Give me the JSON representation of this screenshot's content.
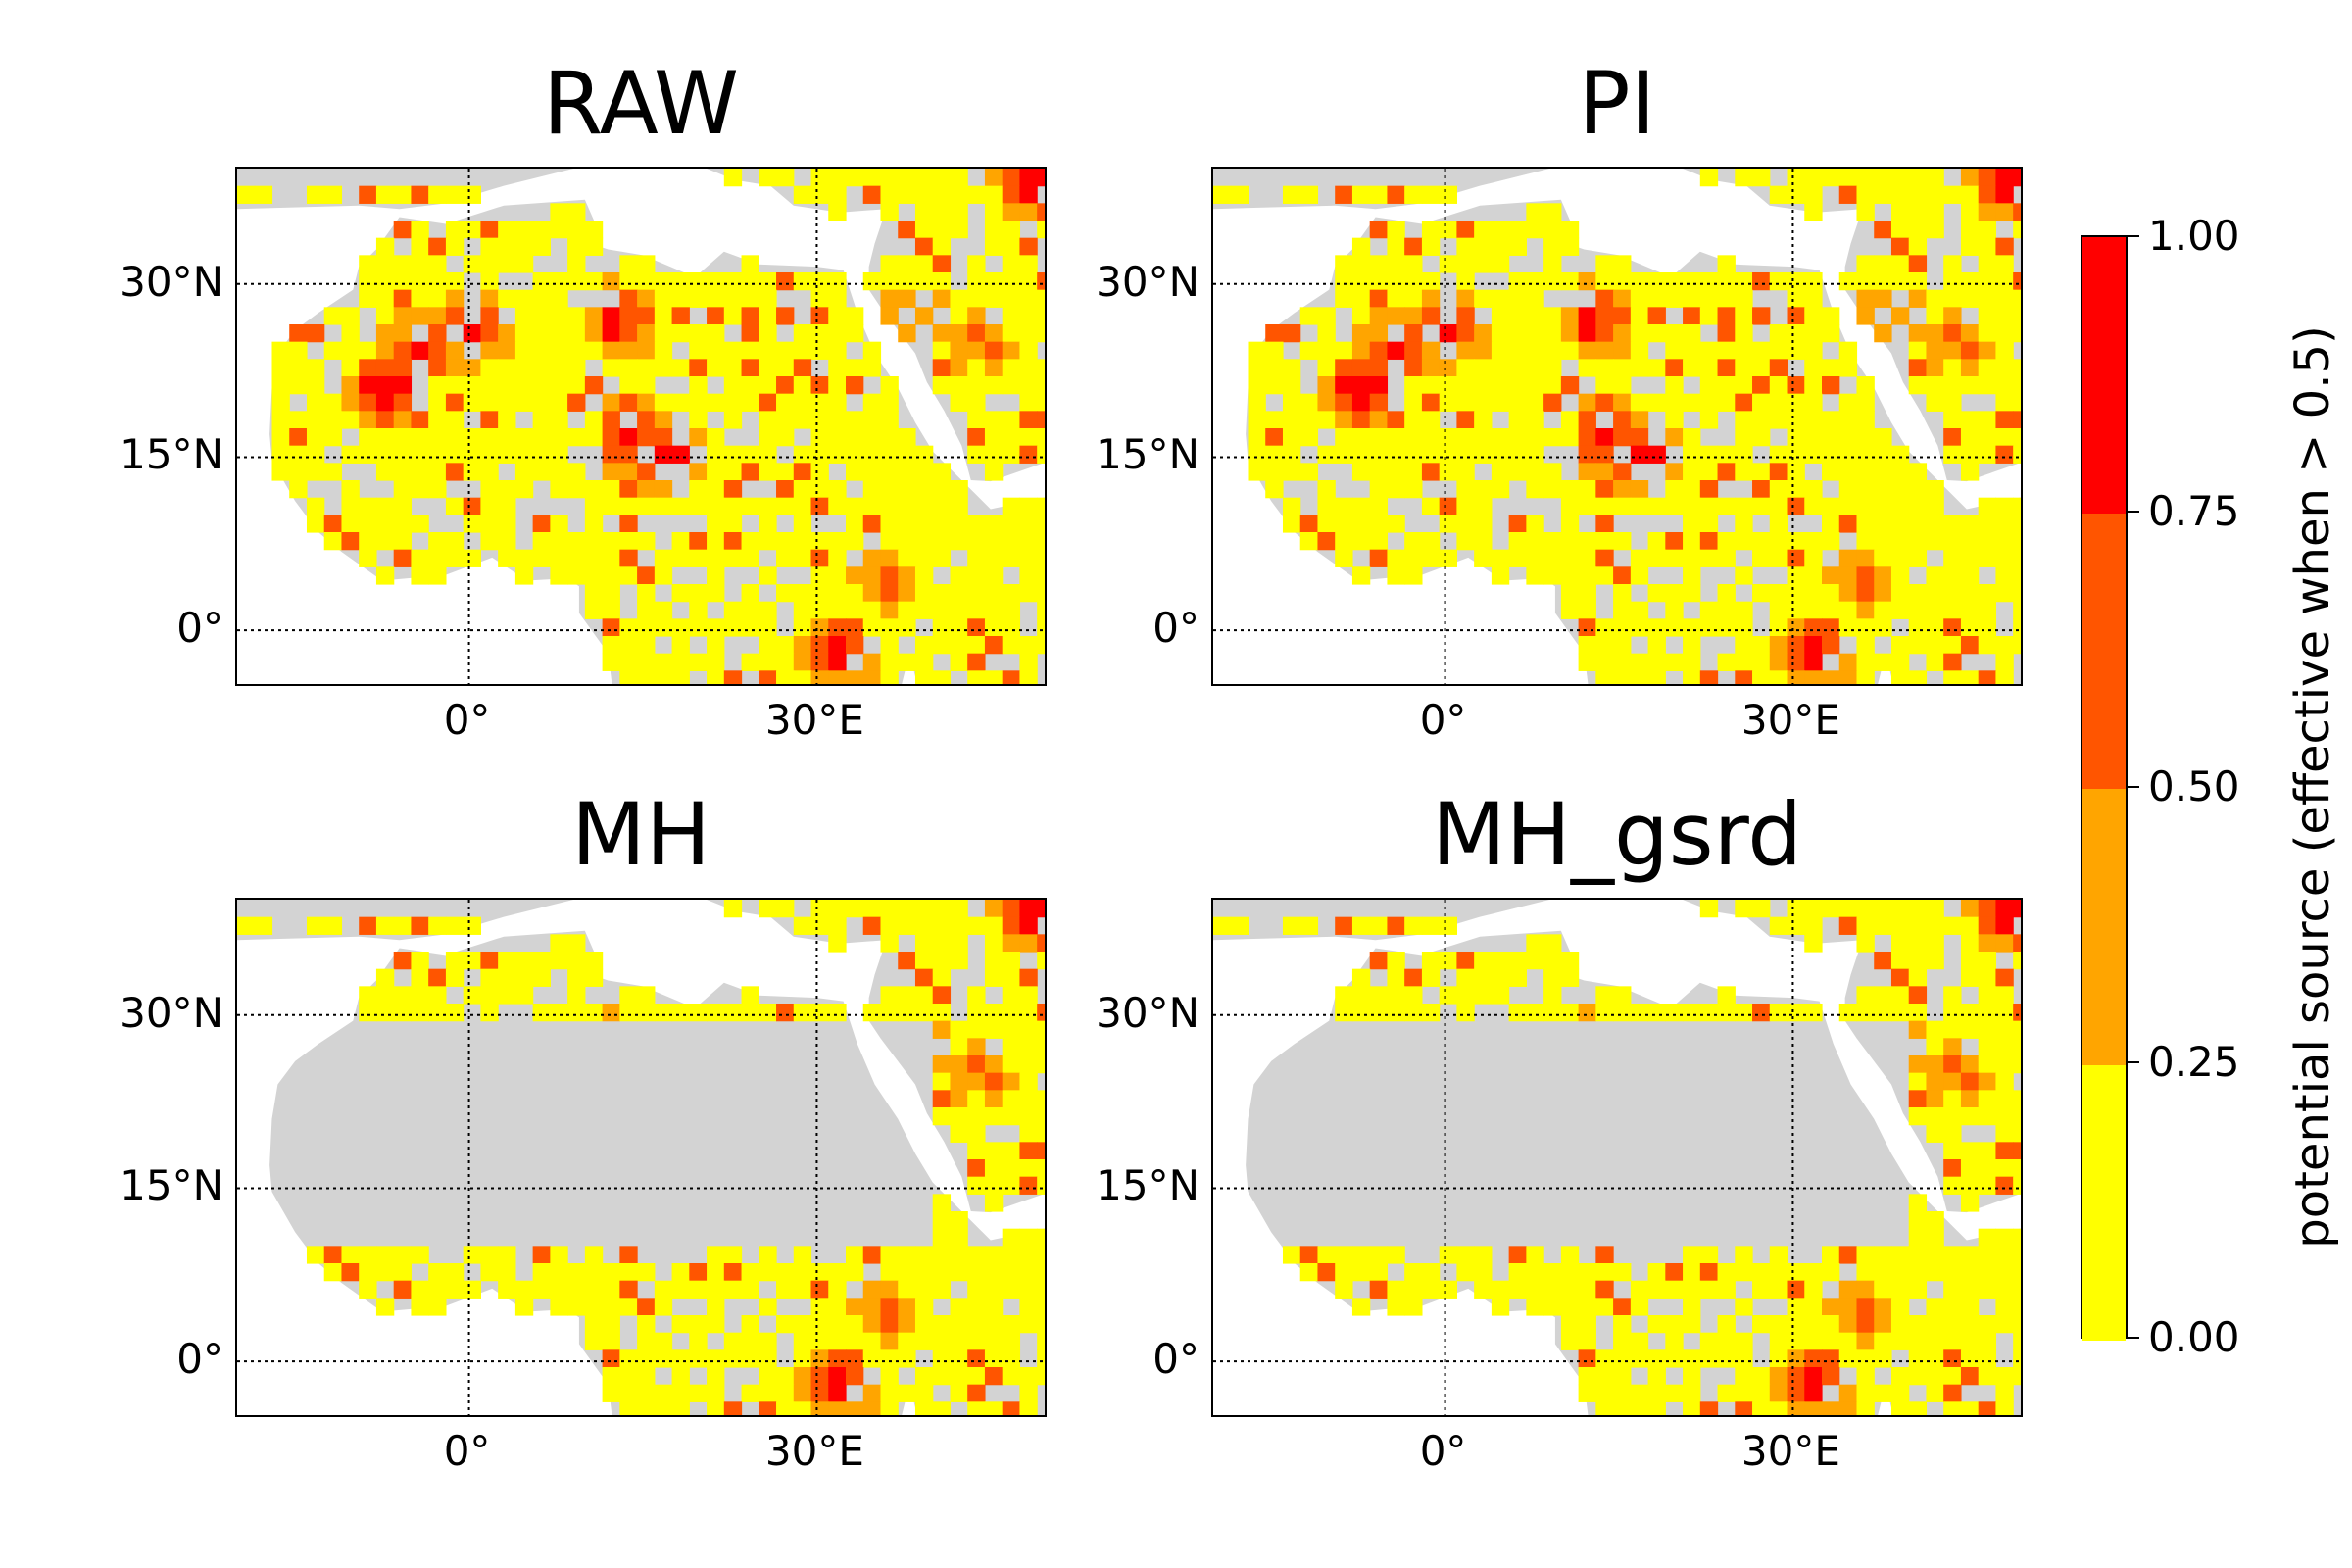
{
  "panels": [
    {
      "id": "raw",
      "title": "RAW",
      "masked_lat_range": null
    },
    {
      "id": "pi",
      "title": "PI",
      "masked_lat_range": null
    },
    {
      "id": "mh",
      "title": "MH",
      "masked_lat_range": [
        10,
        30
      ]
    },
    {
      "id": "mh_gsrd",
      "title": "MH_gsrd",
      "masked_lat_range": [
        10,
        30
      ]
    }
  ],
  "map_extent": {
    "lon_min": -20,
    "lon_max": 50,
    "lat_min": -5,
    "lat_max": 40
  },
  "gridlines": {
    "lons": [
      0,
      30
    ],
    "lats": [
      0,
      15,
      30
    ]
  },
  "x_ticks": [
    {
      "value": 0,
      "label": "0°"
    },
    {
      "value": 30,
      "label": "30°E"
    }
  ],
  "y_ticks": [
    {
      "value": 30,
      "label": "30°N"
    },
    {
      "value": 15,
      "label": "15°N"
    },
    {
      "value": 0,
      "label": "0°"
    }
  ],
  "colorbar": {
    "title": "potential source (effective when > 0.5)",
    "bins": [
      {
        "from": 0.0,
        "to": 0.25,
        "color": "#ffff00"
      },
      {
        "from": 0.25,
        "to": 0.5,
        "color": "#ffa500"
      },
      {
        "from": 0.5,
        "to": 0.75,
        "color": "#ff5500"
      },
      {
        "from": 0.75,
        "to": 1.0,
        "color": "#ff0000"
      }
    ],
    "ticks": [
      "0.00",
      "0.25",
      "0.50",
      "0.75",
      "1.00"
    ]
  },
  "colors": {
    "land": "#d3d3d3",
    "background": "#ffffff"
  },
  "hotspots": [
    {
      "lon": -7,
      "lat": 21,
      "value": 0.9
    },
    {
      "lon": -4,
      "lat": 24,
      "value": 0.85
    },
    {
      "lon": 0,
      "lat": 26,
      "value": 0.9
    },
    {
      "lon": 14,
      "lat": 17,
      "value": 0.95
    },
    {
      "lon": 17,
      "lat": 15,
      "value": 0.9
    },
    {
      "lon": 13,
      "lat": 27,
      "value": 0.85
    },
    {
      "lon": 38,
      "lat": 27,
      "value": 0.6
    },
    {
      "lon": 44,
      "lat": 25,
      "value": 0.6
    },
    {
      "lon": 36,
      "lat": 4,
      "value": 0.55
    },
    {
      "lon": 32,
      "lat": -2,
      "value": 0.9
    },
    {
      "lon": 49,
      "lat": 39,
      "value": 0.9
    }
  ]
}
